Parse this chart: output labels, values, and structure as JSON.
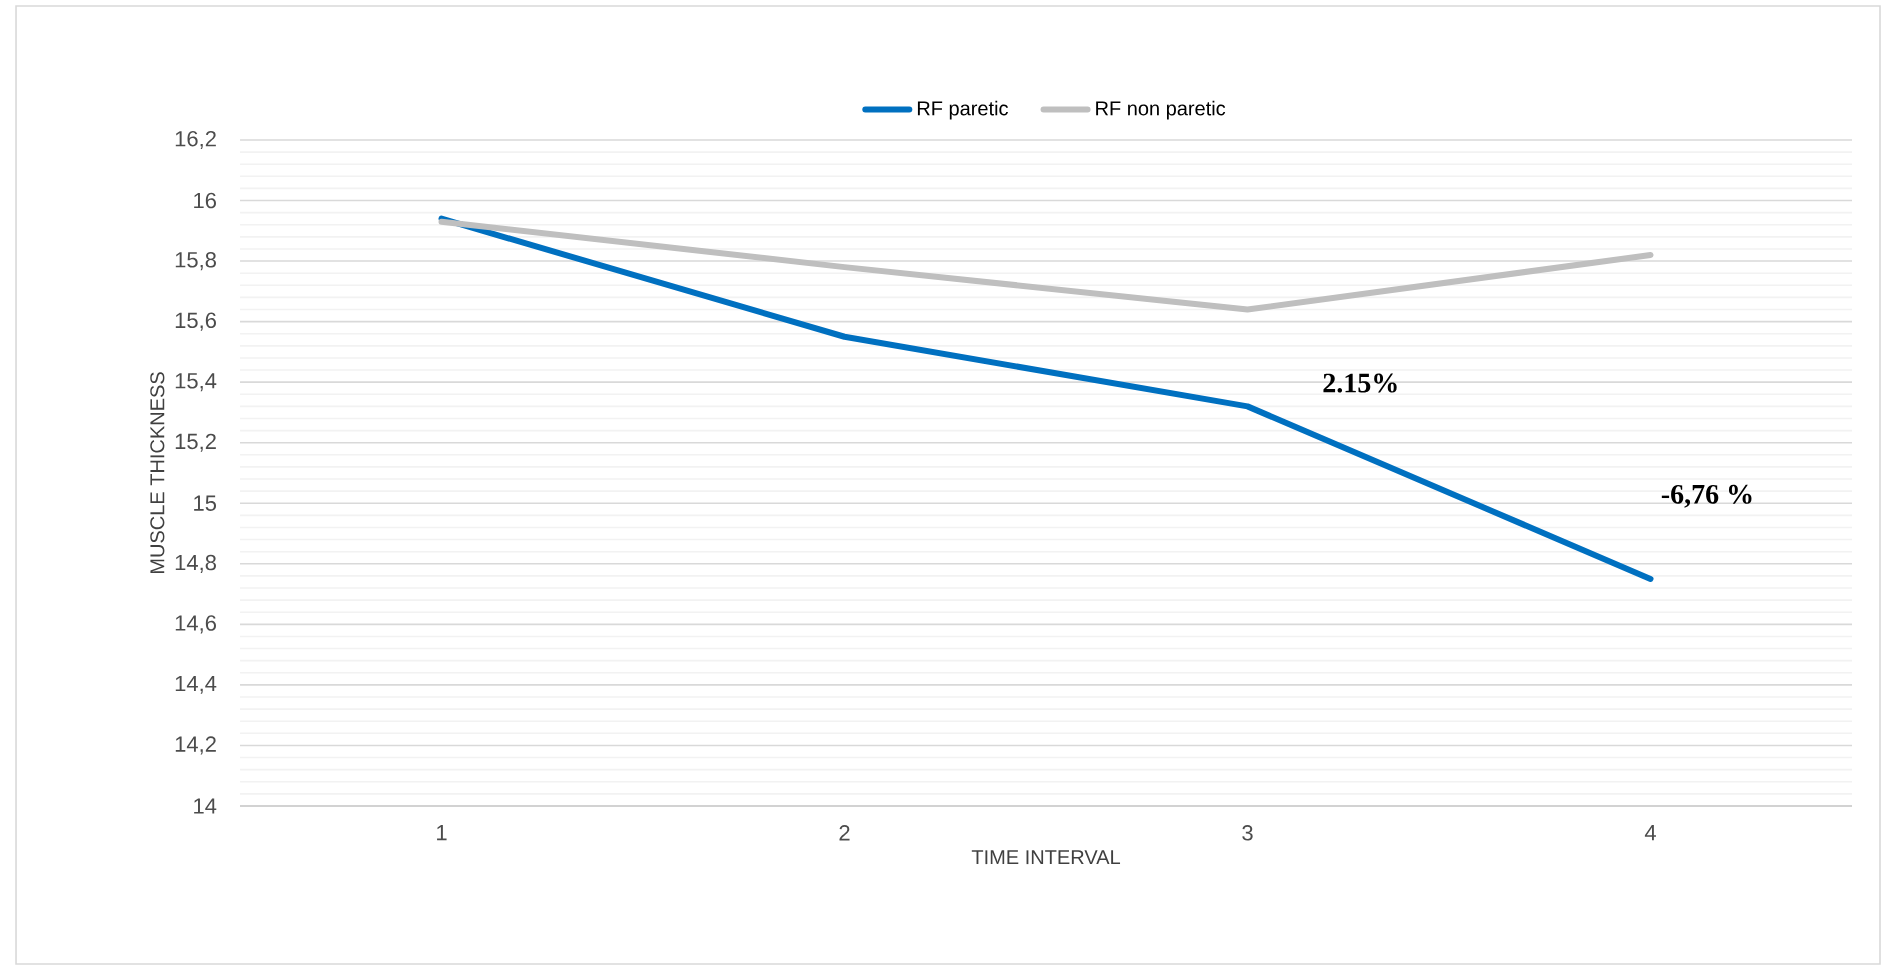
{
  "chart_data": {
    "type": "line",
    "xlabel": "TIME INTERVAL",
    "ylabel": "MUSCLE THICKNESS",
    "categories": [
      "1",
      "2",
      "3",
      "4"
    ],
    "series": [
      {
        "name": "RF paretic",
        "color": "#0070c0",
        "values": [
          15.94,
          15.55,
          15.32,
          14.75
        ]
      },
      {
        "name": "RF non paretic",
        "color": "#bfbfbf",
        "values": [
          15.93,
          15.78,
          15.64,
          15.82
        ]
      }
    ],
    "ylim": [
      14,
      16.2
    ],
    "yticks": [
      {
        "value": 14,
        "label": "14"
      },
      {
        "value": 14.2,
        "label": "14,2"
      },
      {
        "value": 14.4,
        "label": "14,4"
      },
      {
        "value": 14.6,
        "label": "14,6"
      },
      {
        "value": 14.8,
        "label": "14,8"
      },
      {
        "value": 15,
        "label": "15"
      },
      {
        "value": 15.2,
        "label": "15,2"
      },
      {
        "value": 15.4,
        "label": "15,4"
      },
      {
        "value": 15.6,
        "label": "15,6"
      },
      {
        "value": 15.8,
        "label": "15,8"
      },
      {
        "value": 16,
        "label": "16"
      },
      {
        "value": 16.2,
        "label": "16,2"
      }
    ],
    "annotations": [
      "2.15%",
      "-6,76 %"
    ],
    "grid": "y",
    "legend": "top",
    "marker": "none",
    "line_style": "solid"
  }
}
